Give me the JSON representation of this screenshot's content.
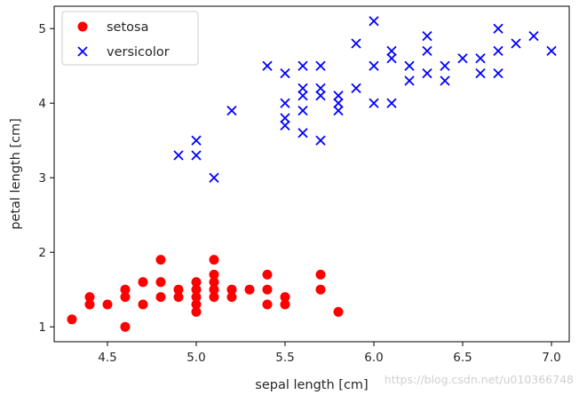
{
  "chart_data": {
    "type": "scatter",
    "title": "",
    "xlabel": "sepal length [cm]",
    "ylabel": "petal length [cm]",
    "xlim": [
      4.2,
      7.1
    ],
    "ylim": [
      0.8,
      5.3
    ],
    "x_ticks": [
      "4.5",
      "5.0",
      "5.5",
      "6.0",
      "6.5",
      "7.0"
    ],
    "x_tick_values": [
      4.5,
      5.0,
      5.5,
      6.0,
      6.5,
      7.0
    ],
    "y_ticks": [
      "1",
      "2",
      "3",
      "4",
      "5"
    ],
    "y_tick_values": [
      1,
      2,
      3,
      4,
      5
    ],
    "grid": false,
    "legend_position": "top-left",
    "series": [
      {
        "name": "setosa",
        "marker": "circle",
        "color": "#ff0000",
        "points": [
          [
            4.3,
            1.1
          ],
          [
            4.4,
            1.3
          ],
          [
            4.4,
            1.4
          ],
          [
            4.5,
            1.3
          ],
          [
            4.6,
            1.0
          ],
          [
            4.6,
            1.4
          ],
          [
            4.6,
            1.5
          ],
          [
            4.7,
            1.3
          ],
          [
            4.7,
            1.6
          ],
          [
            4.8,
            1.4
          ],
          [
            4.8,
            1.6
          ],
          [
            4.8,
            1.9
          ],
          [
            4.9,
            1.4
          ],
          [
            4.9,
            1.5
          ],
          [
            5.0,
            1.2
          ],
          [
            5.0,
            1.3
          ],
          [
            5.0,
            1.4
          ],
          [
            5.0,
            1.5
          ],
          [
            5.0,
            1.6
          ],
          [
            5.1,
            1.4
          ],
          [
            5.1,
            1.5
          ],
          [
            5.1,
            1.6
          ],
          [
            5.1,
            1.7
          ],
          [
            5.1,
            1.9
          ],
          [
            5.2,
            1.4
          ],
          [
            5.2,
            1.5
          ],
          [
            5.3,
            1.5
          ],
          [
            5.4,
            1.3
          ],
          [
            5.4,
            1.5
          ],
          [
            5.4,
            1.7
          ],
          [
            5.5,
            1.3
          ],
          [
            5.5,
            1.4
          ],
          [
            5.7,
            1.5
          ],
          [
            5.7,
            1.7
          ],
          [
            5.8,
            1.2
          ]
        ]
      },
      {
        "name": "versicolor",
        "marker": "x",
        "color": "#0000ff",
        "points": [
          [
            4.9,
            3.3
          ],
          [
            5.0,
            3.3
          ],
          [
            5.0,
            3.5
          ],
          [
            5.1,
            3.0
          ],
          [
            5.2,
            3.9
          ],
          [
            5.4,
            4.5
          ],
          [
            5.5,
            3.7
          ],
          [
            5.5,
            3.8
          ],
          [
            5.5,
            4.0
          ],
          [
            5.5,
            4.4
          ],
          [
            5.6,
            3.6
          ],
          [
            5.6,
            3.9
          ],
          [
            5.6,
            4.1
          ],
          [
            5.6,
            4.2
          ],
          [
            5.6,
            4.5
          ],
          [
            5.7,
            3.5
          ],
          [
            5.7,
            4.1
          ],
          [
            5.7,
            4.2
          ],
          [
            5.7,
            4.5
          ],
          [
            5.8,
            3.9
          ],
          [
            5.8,
            4.0
          ],
          [
            5.8,
            4.1
          ],
          [
            5.9,
            4.2
          ],
          [
            5.9,
            4.8
          ],
          [
            6.0,
            4.0
          ],
          [
            6.0,
            4.5
          ],
          [
            6.0,
            5.1
          ],
          [
            6.1,
            4.0
          ],
          [
            6.1,
            4.6
          ],
          [
            6.1,
            4.7
          ],
          [
            6.2,
            4.3
          ],
          [
            6.2,
            4.5
          ],
          [
            6.3,
            4.4
          ],
          [
            6.3,
            4.7
          ],
          [
            6.3,
            4.9
          ],
          [
            6.4,
            4.3
          ],
          [
            6.4,
            4.5
          ],
          [
            6.5,
            4.6
          ],
          [
            6.6,
            4.4
          ],
          [
            6.6,
            4.6
          ],
          [
            6.7,
            4.4
          ],
          [
            6.7,
            4.7
          ],
          [
            6.7,
            5.0
          ],
          [
            6.8,
            4.8
          ],
          [
            6.9,
            4.9
          ],
          [
            7.0,
            4.7
          ]
        ]
      }
    ]
  },
  "watermark": "https://blog.csdn.net/u010366748"
}
